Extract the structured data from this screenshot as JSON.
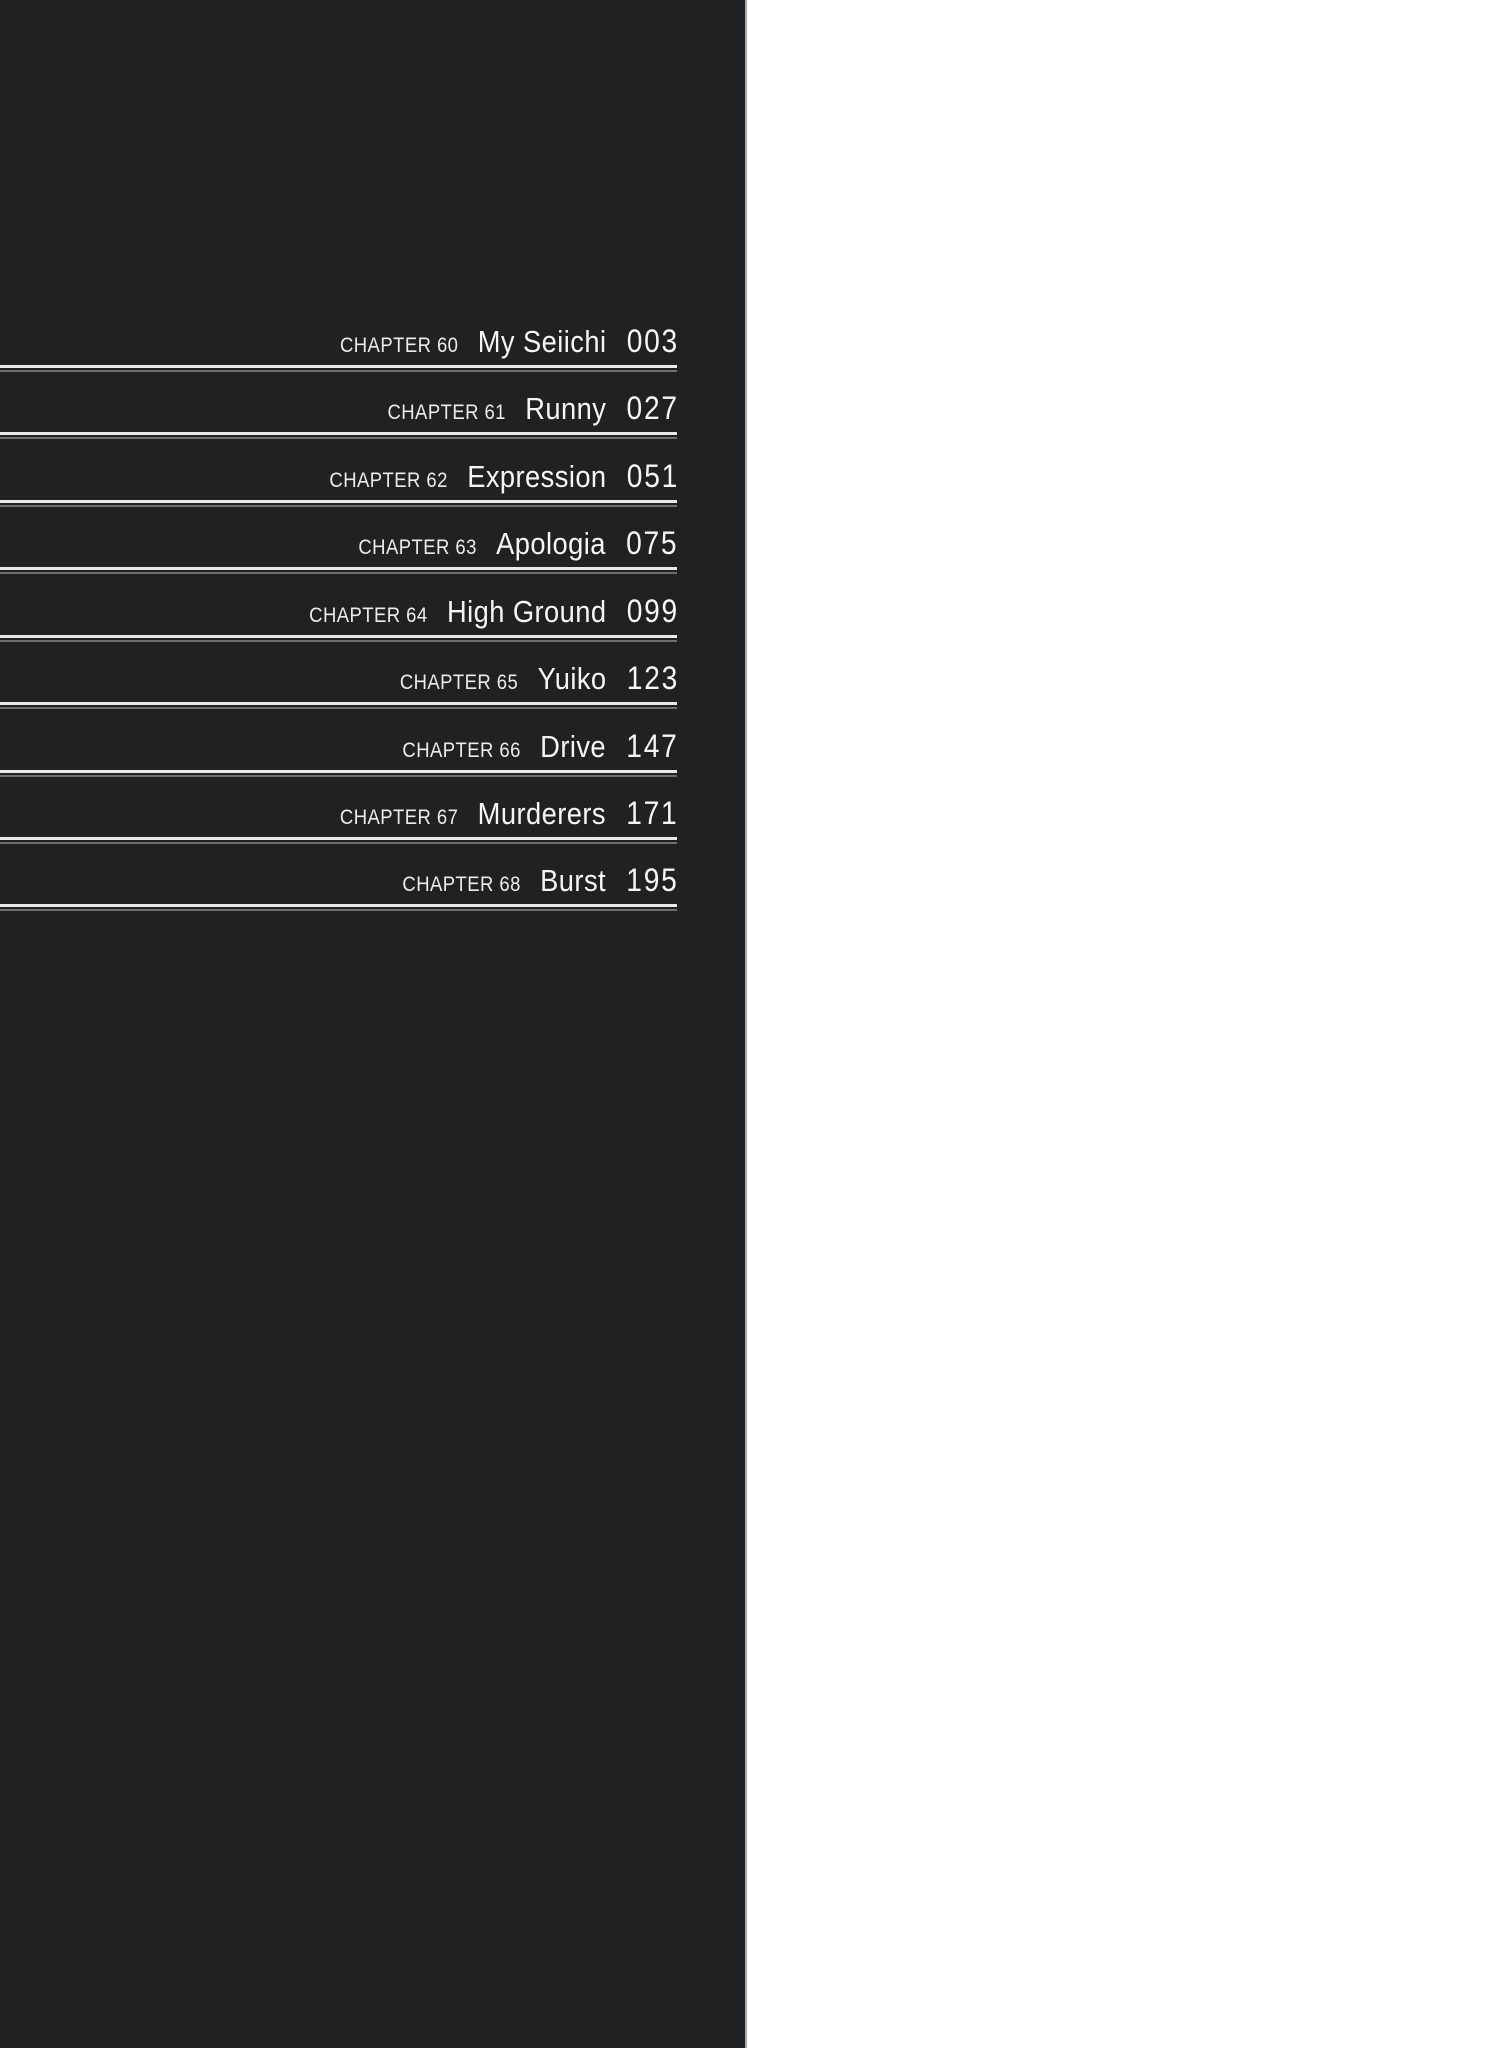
{
  "colors": {
    "panel_bg": "#202123",
    "page_bg": "#ffffff",
    "text": "#f2f2f2",
    "rule": "#e9e9e9"
  },
  "chapters": [
    {
      "label": "CHAPTER 60",
      "title": "My Seiichi",
      "page": "003"
    },
    {
      "label": "CHAPTER 61",
      "title": "Runny",
      "page": "027"
    },
    {
      "label": "CHAPTER 62",
      "title": "Expression",
      "page": "051"
    },
    {
      "label": "CHAPTER 63",
      "title": "Apologia",
      "page": "075"
    },
    {
      "label": "CHAPTER 64",
      "title": "High Ground",
      "page": "099"
    },
    {
      "label": "CHAPTER 65",
      "title": "Yuiko",
      "page": "123"
    },
    {
      "label": "CHAPTER 66",
      "title": "Drive",
      "page": "147"
    },
    {
      "label": "CHAPTER 67",
      "title": "Murderers",
      "page": "171"
    },
    {
      "label": "CHAPTER 68",
      "title": "Burst",
      "page": "195"
    }
  ]
}
